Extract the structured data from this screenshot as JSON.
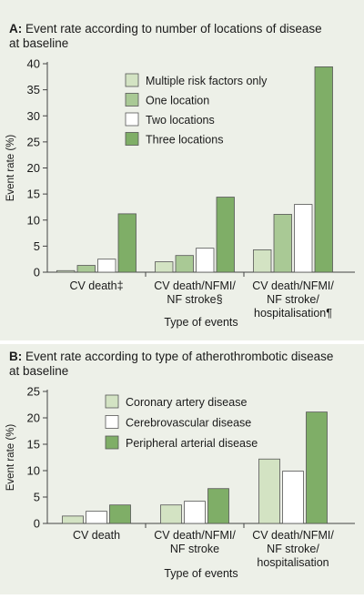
{
  "colors": {
    "panel_bg": "#edf0e8",
    "axis": "#444444",
    "bar_stroke": "#555555"
  },
  "chart_data": [
    {
      "type": "bar",
      "panel_letter": "A:",
      "title_lines": [
        "Event rate according to number of locations of disease",
        "at baseline"
      ],
      "ylabel": "Event rate (%)",
      "xlabel": "Type of events",
      "ylim": [
        0,
        40
      ],
      "yticks": [
        0,
        5,
        10,
        15,
        20,
        25,
        30,
        35,
        40
      ],
      "legend_position": "top-center",
      "categories": [
        {
          "lines": [
            "CV death‡"
          ]
        },
        {
          "lines": [
            "CV death/NFMI/",
            "NF stroke§"
          ]
        },
        {
          "lines": [
            "CV death/NFMI/",
            "NF stroke/",
            "hospitalisation¶"
          ]
        }
      ],
      "series": [
        {
          "name": "Multiple risk factors only",
          "color": "#d3e3c3",
          "values": [
            0.3,
            2.0,
            4.3
          ]
        },
        {
          "name": "One location",
          "color": "#a9c995",
          "values": [
            1.3,
            3.2,
            11.1
          ]
        },
        {
          "name": "Two locations",
          "color": "#ffffff",
          "values": [
            2.5,
            4.6,
            13.0
          ]
        },
        {
          "name": "Three locations",
          "color": "#7fae67",
          "values": [
            11.2,
            14.4,
            39.4
          ]
        }
      ]
    },
    {
      "type": "bar",
      "panel_letter": "B:",
      "title_lines": [
        "Event rate according to type of atherothrombotic disease",
        "at baseline"
      ],
      "ylabel": "Event rate (%)",
      "xlabel": "Type of events",
      "ylim": [
        0,
        25
      ],
      "yticks": [
        0,
        5,
        10,
        15,
        20,
        25
      ],
      "legend_position": "top-center",
      "categories": [
        {
          "lines": [
            "CV death"
          ]
        },
        {
          "lines": [
            "CV death/NFMI/",
            "NF stroke"
          ]
        },
        {
          "lines": [
            "CV death/NFMI/",
            "NF stroke/",
            "hospitalisation"
          ]
        }
      ],
      "series": [
        {
          "name": "Coronary artery disease",
          "color": "#d3e3c3",
          "values": [
            1.4,
            3.5,
            12.2
          ]
        },
        {
          "name": "Cerebrovascular disease",
          "color": "#ffffff",
          "values": [
            2.3,
            4.2,
            9.9
          ]
        },
        {
          "name": "Peripheral arterial disease",
          "color": "#7fae67",
          "values": [
            3.5,
            6.6,
            21.1
          ]
        }
      ]
    }
  ]
}
